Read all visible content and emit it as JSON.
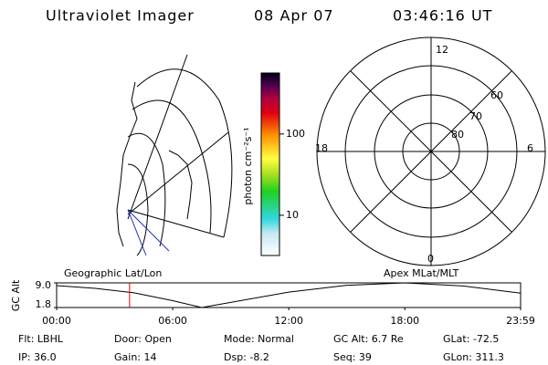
{
  "header": {
    "title": "Ultraviolet Imager",
    "date": "08 Apr 07",
    "time": "03:46:16 UT"
  },
  "polar_plot": {
    "mlt_labels": [
      "12",
      "18",
      "6",
      "0"
    ],
    "lat_labels": [
      "60",
      "70",
      "80"
    ]
  },
  "chart_data": [
    {
      "type": "colorbar",
      "label": "photon cm⁻²s⁻¹",
      "log_scale": true,
      "ylim": [
        3.2,
        563
      ],
      "yticks": [
        10,
        100
      ]
    },
    {
      "type": "line",
      "y_label": "GC Alt",
      "left_title": "Geographic Lat/Lon",
      "right_title": "Apex MLat/MLT",
      "x": [
        0,
        2,
        4,
        6,
        7.5,
        9,
        12,
        15,
        18,
        21,
        23.983
      ],
      "series": [
        {
          "color": "#000000",
          "values": [
            8.2,
            7.4,
            6.1,
            3.8,
            1.8,
            3.3,
            6.3,
            8.3,
            9.0,
            8.1,
            6.0
          ]
        }
      ],
      "marker_x": 3.77,
      "marker_color": "#e00000",
      "xlim": [
        0,
        23.983
      ],
      "ylim": [
        1.8,
        9.0
      ],
      "xticks": [
        {
          "value": 0,
          "label": "00:00"
        },
        {
          "value": 6,
          "label": "06:00"
        },
        {
          "value": 12,
          "label": "12:00"
        },
        {
          "value": 18,
          "label": "18:00"
        },
        {
          "value": 23.983,
          "label": "23:59"
        }
      ],
      "yticks": [
        {
          "value": 9.0,
          "label": "9.0"
        },
        {
          "value": 1.8,
          "label": "1.8"
        }
      ]
    }
  ],
  "info": {
    "rows": [
      [
        "Flt: LBHL",
        "Door: Open",
        "Mode: Normal",
        "GC Alt: 6.7 Re",
        "GLat: -72.5"
      ],
      [
        "IP: 36.0",
        "Gain: 14",
        "Dsp:   -8.2",
        "Seq: 39",
        "GLon: 311.3"
      ]
    ]
  }
}
